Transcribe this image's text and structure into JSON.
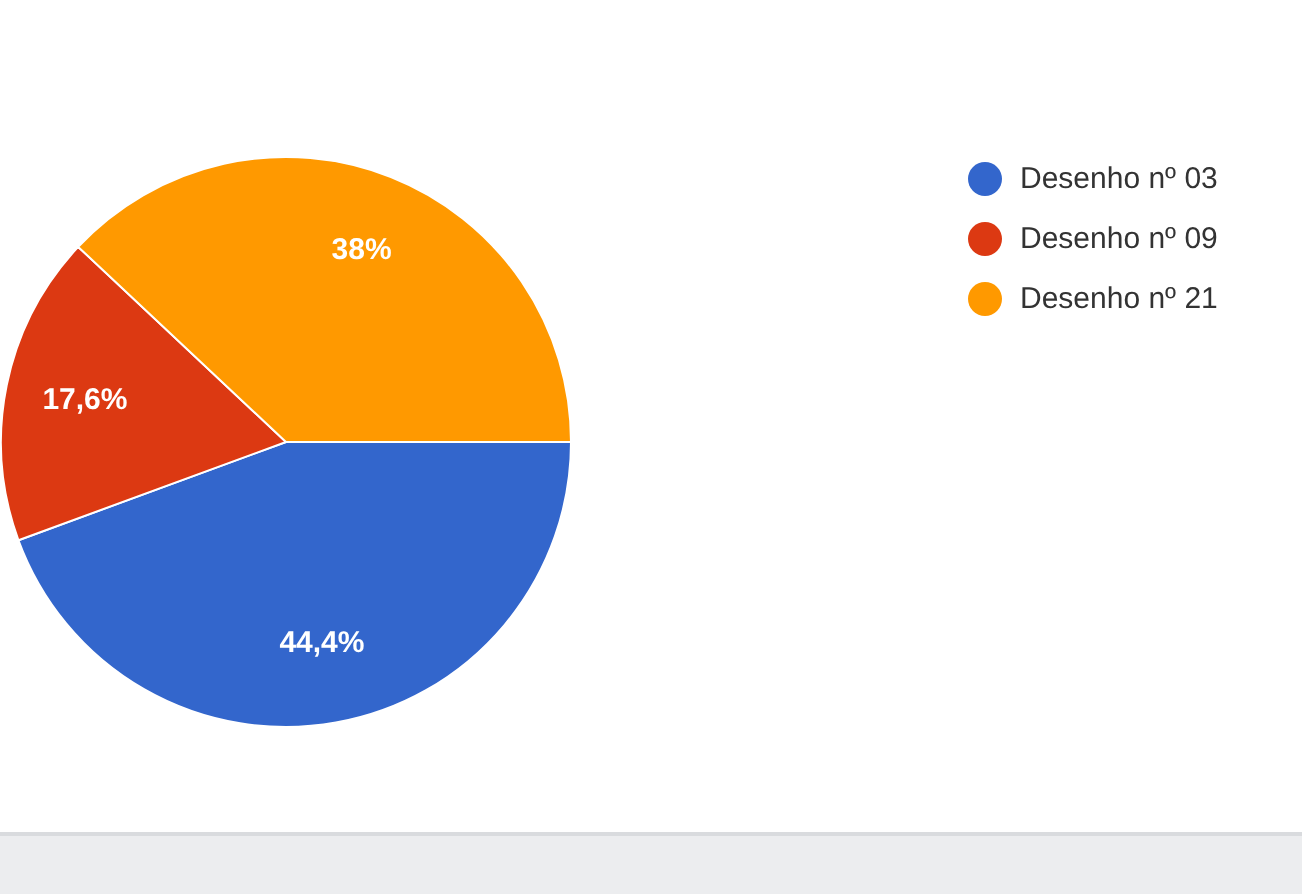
{
  "chart_data": {
    "type": "pie",
    "categories": [
      "Desenho nº 03",
      "Desenho nº 09",
      "Desenho nº 21"
    ],
    "values": [
      44.4,
      17.6,
      38
    ],
    "colors": [
      "#3366cc",
      "#dc3912",
      "#ff9900"
    ],
    "value_labels": [
      "44,4%",
      "17,6%",
      "38%"
    ],
    "legend": "top right"
  }
}
